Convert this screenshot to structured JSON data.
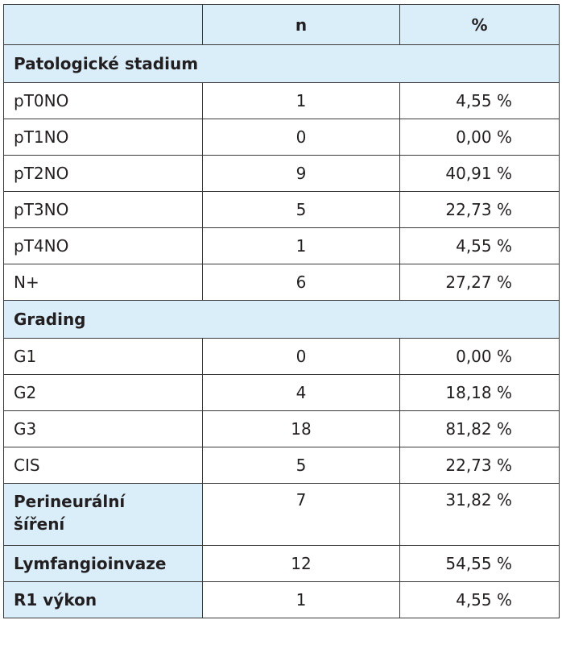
{
  "header": {
    "col1": "",
    "col2": "n",
    "col3": "%"
  },
  "sections": [
    {
      "title": "Patologické stadium",
      "rows": [
        {
          "label": "pT0NO",
          "n": "1",
          "pct": "4,55 %"
        },
        {
          "label": "pT1NO",
          "n": "0",
          "pct": "0,00 %"
        },
        {
          "label": "pT2NO",
          "n": "9",
          "pct": "40,91 %"
        },
        {
          "label": "pT3NO",
          "n": "5",
          "pct": "22,73 %"
        },
        {
          "label": "pT4NO",
          "n": "1",
          "pct": "4,55 %"
        },
        {
          "label": "N+",
          "n": "6",
          "pct": "27,27 %"
        }
      ]
    },
    {
      "title": "Grading",
      "rows": [
        {
          "label": "G1",
          "n": "0",
          "pct": "0,00 %"
        },
        {
          "label": "G2",
          "n": "4",
          "pct": "18,18 %"
        },
        {
          "label": "G3",
          "n": "18",
          "pct": "81,82 %"
        },
        {
          "label": "CIS",
          "n": "5",
          "pct": "22,73 %"
        }
      ]
    }
  ],
  "bold_rows": [
    {
      "label_line1": "Perineurální",
      "label_line2": "šíření",
      "n": "7",
      "pct": "31,82 %"
    },
    {
      "label": "Lymfangioinvaze",
      "n": "12",
      "pct": "54,55 %"
    },
    {
      "label": "R1 výkon",
      "n": "1",
      "pct": "4,55 %"
    }
  ],
  "colors": {
    "header_bg": "#d9eef8",
    "border": "#3a3a3a",
    "text": "#231f20"
  }
}
